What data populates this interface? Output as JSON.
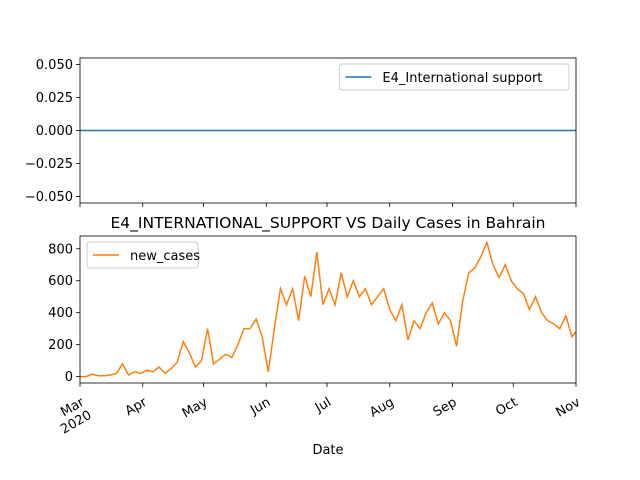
{
  "chart_data": [
    {
      "type": "line",
      "xlim": [
        "2020-03-01",
        "2020-11-01"
      ],
      "ylim": [
        -0.055,
        0.055
      ],
      "yticks": [
        {
          "value": -0.05,
          "label": "−0.050"
        },
        {
          "value": -0.025,
          "label": "−0.025"
        },
        {
          "value": 0,
          "label": "0.000"
        },
        {
          "value": 0.025,
          "label": "0.025"
        },
        {
          "value": 0.05,
          "label": "0.050"
        }
      ],
      "x": [
        "2020-03-01",
        "2020-11-01"
      ],
      "series": [
        {
          "name": "E4_International support",
          "color": "#1f77b4",
          "values": [
            0,
            0
          ]
        }
      ],
      "legend": "upper right"
    },
    {
      "type": "line",
      "title": "E4_INTERNATIONAL_SUPPORT VS Daily Cases in Bahrain",
      "xlabel": "Date",
      "xlim": [
        "2020-03-01",
        "2020-11-01"
      ],
      "xticks": [
        {
          "value": "2020-03-01",
          "label": "Mar\n2020"
        },
        {
          "value": "2020-04-01",
          "label": "Apr"
        },
        {
          "value": "2020-05-01",
          "label": "May"
        },
        {
          "value": "2020-06-01",
          "label": "Jun"
        },
        {
          "value": "2020-07-01",
          "label": "Jul"
        },
        {
          "value": "2020-08-01",
          "label": "Aug"
        },
        {
          "value": "2020-09-01",
          "label": "Sep"
        },
        {
          "value": "2020-10-01",
          "label": "Oct"
        },
        {
          "value": "2020-11-01",
          "label": "Nov"
        }
      ],
      "ylim": [
        -40,
        880
      ],
      "yticks": [
        0,
        200,
        400,
        600,
        800
      ],
      "x": [
        "2020-03-01",
        "2020-03-04",
        "2020-03-07",
        "2020-03-10",
        "2020-03-13",
        "2020-03-16",
        "2020-03-19",
        "2020-03-22",
        "2020-03-25",
        "2020-03-28",
        "2020-03-31",
        "2020-04-03",
        "2020-04-06",
        "2020-04-09",
        "2020-04-12",
        "2020-04-15",
        "2020-04-18",
        "2020-04-21",
        "2020-04-24",
        "2020-04-27",
        "2020-04-30",
        "2020-05-03",
        "2020-05-06",
        "2020-05-09",
        "2020-05-12",
        "2020-05-15",
        "2020-05-18",
        "2020-05-21",
        "2020-05-24",
        "2020-05-27",
        "2020-05-30",
        "2020-06-02",
        "2020-06-05",
        "2020-06-08",
        "2020-06-11",
        "2020-06-14",
        "2020-06-17",
        "2020-06-20",
        "2020-06-23",
        "2020-06-26",
        "2020-06-29",
        "2020-07-02",
        "2020-07-05",
        "2020-07-08",
        "2020-07-11",
        "2020-07-14",
        "2020-07-17",
        "2020-07-20",
        "2020-07-23",
        "2020-07-26",
        "2020-07-29",
        "2020-08-01",
        "2020-08-04",
        "2020-08-07",
        "2020-08-10",
        "2020-08-13",
        "2020-08-16",
        "2020-08-19",
        "2020-08-22",
        "2020-08-25",
        "2020-08-28",
        "2020-08-31",
        "2020-09-03",
        "2020-09-06",
        "2020-09-09",
        "2020-09-12",
        "2020-09-15",
        "2020-09-18",
        "2020-09-21",
        "2020-09-24",
        "2020-09-27",
        "2020-09-30",
        "2020-10-03",
        "2020-10-06",
        "2020-10-09",
        "2020-10-12",
        "2020-10-15",
        "2020-10-18",
        "2020-10-21",
        "2020-10-24",
        "2020-10-27",
        "2020-10-30",
        "2020-11-01"
      ],
      "series": [
        {
          "name": "new_cases",
          "color": "#ff7f0e",
          "values": [
            0,
            0,
            15,
            5,
            5,
            10,
            20,
            80,
            10,
            30,
            20,
            40,
            30,
            60,
            20,
            50,
            90,
            220,
            150,
            60,
            100,
            300,
            80,
            110,
            140,
            120,
            200,
            300,
            300,
            360,
            250,
            30,
            300,
            550,
            450,
            550,
            350,
            630,
            500,
            780,
            450,
            550,
            450,
            650,
            500,
            600,
            500,
            550,
            450,
            500,
            550,
            420,
            350,
            450,
            230,
            350,
            300,
            400,
            460,
            330,
            400,
            350,
            190,
            470,
            650,
            680,
            750,
            840,
            700,
            620,
            700,
            600,
            550,
            520,
            420,
            500,
            400,
            350,
            330,
            300,
            380,
            250,
            280
          ]
        }
      ],
      "legend": "upper left"
    }
  ]
}
